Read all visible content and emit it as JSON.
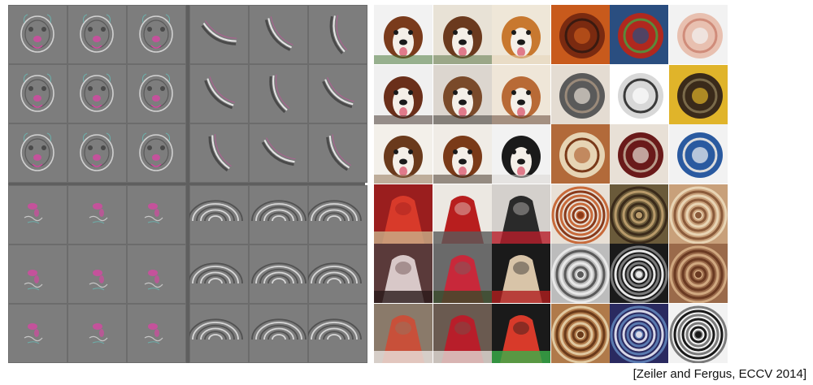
{
  "citation": "[Zeiler and Fergus, ECCV 2014]",
  "colors": {
    "panel_bg": "#7b7b7b",
    "separator": "#5f5f5f",
    "accent_magenta": "#d04aa0",
    "accent_cyan": "#5fd0c8"
  },
  "left_groups": [
    {
      "name": "dog-face-reconstructions",
      "pattern": "face"
    },
    {
      "name": "curve-edge-reconstructions",
      "pattern": "curve"
    },
    {
      "name": "sparse-blob-reconstructions",
      "pattern": "blob"
    },
    {
      "name": "concentric-ring-reconstructions",
      "pattern": "rings"
    }
  ],
  "right_groups": [
    {
      "name": "dog-face-patches",
      "palettes": [
        [
          "#f2f2f2",
          "#7a3b1c",
          "#3c6e2a"
        ],
        [
          "#e8e2d6",
          "#6b3a1e",
          "#4d6b3a"
        ],
        [
          "#efe7d8",
          "#c8782f",
          "#e3d2b4"
        ],
        [
          "#f0f0f0",
          "#6a2f1a",
          "#3a2a22"
        ],
        [
          "#dcd6cf",
          "#7a4a2a",
          "#2e2a26"
        ],
        [
          "#efe6d8",
          "#b86a36",
          "#5a3a2a"
        ],
        [
          "#f3f0ea",
          "#6a3a1c",
          "#8a6a4a"
        ],
        [
          "#f0ece6",
          "#7a3a18",
          "#3a2a1c"
        ],
        [
          "#f2f2f2",
          "#1a1a1a",
          "#d8d4d0"
        ]
      ]
    },
    {
      "name": "round-object-patches",
      "palettes": [
        [
          "#c85a1c",
          "#7a2a10",
          "#3a1a10"
        ],
        [
          "#2a4e80",
          "#b0281e",
          "#5a8a3a"
        ],
        [
          "#f2f2f2",
          "#e8c0b0",
          "#d08c7a"
        ],
        [
          "#e4dcd2",
          "#5a5a5a",
          "#9a8a7a"
        ],
        [
          "#ffffff",
          "#d8d8d8",
          "#3a3a3a"
        ],
        [
          "#e0b42a",
          "#3a2a1a",
          "#7a6a4a"
        ],
        [
          "#b26a3a",
          "#e6d4b4",
          "#7a3a1a"
        ],
        [
          "#e8e0d6",
          "#6a1a1a",
          "#b89a8a"
        ],
        [
          "#f2f2f2",
          "#2a5aa0",
          "#dcdcdc"
        ]
      ]
    },
    {
      "name": "red-clothing-patches",
      "palettes": [
        [
          "#9a1e1e",
          "#d83a2a",
          "#c8b08a"
        ],
        [
          "#ece8e2",
          "#b81e1e",
          "#5a5a5a"
        ],
        [
          "#d4d0cc",
          "#2a2a2a",
          "#b81e2a"
        ],
        [
          "#5a3a3a",
          "#d8c8c8",
          "#2a1a1a"
        ],
        [
          "#6a6a6a",
          "#c8283a",
          "#3a4a2a"
        ],
        [
          "#1a1a1a",
          "#d8c4a8",
          "#b01e1e"
        ],
        [
          "#8a7a6a",
          "#c8503a",
          "#e8e4e0"
        ],
        [
          "#6a5a50",
          "#b81e2a",
          "#e0dad4"
        ],
        [
          "#1a1a1a",
          "#d83a2a",
          "#3ab04a"
        ]
      ]
    },
    {
      "name": "spiral-patches",
      "palettes": [
        [
          "#e8e0d6",
          "#8a3a1a",
          "#c86a3a"
        ],
        [
          "#6a5a3a",
          "#b89a6a",
          "#3a2a1a"
        ],
        [
          "#c8a07a",
          "#8a5a3a",
          "#e8d4b4"
        ],
        [
          "#bcbcbc",
          "#5a5a5a",
          "#e8e8e8"
        ],
        [
          "#1a1a1a",
          "#e8e8e8",
          "#7a7a7a"
        ],
        [
          "#9a6a4a",
          "#6a3a22",
          "#d0a880"
        ],
        [
          "#b07a4a",
          "#6a3a1a",
          "#e0c8a0"
        ],
        [
          "#2a2a60",
          "#d8d8e8",
          "#5a7ab0"
        ],
        [
          "#f2f2f2",
          "#1a1a1a",
          "#7a7a7a"
        ]
      ]
    }
  ]
}
